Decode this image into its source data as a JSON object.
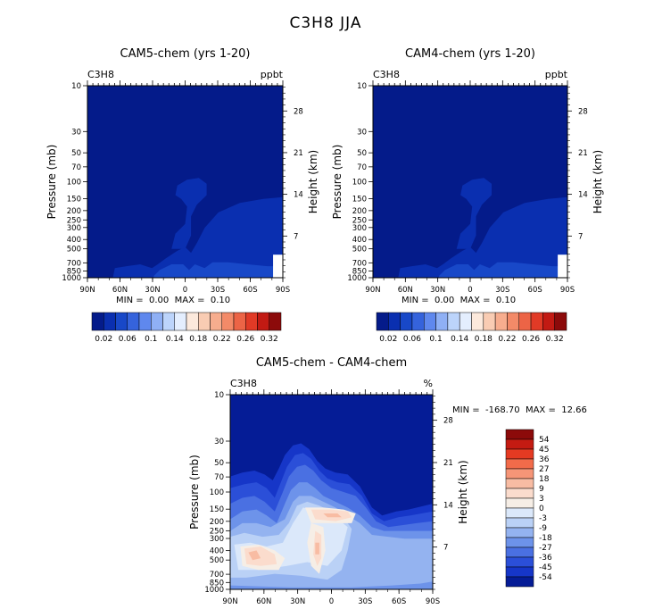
{
  "figure": {
    "title": "C3H8 JJA"
  },
  "chart_data": [
    {
      "id": "cam5",
      "type": "heatmap",
      "title": "CAM5-chem (yrs 1-20)",
      "left_string": "C3H8",
      "right_string": "ppbt",
      "xlabel": "",
      "ylabel": "Pressure (mb)",
      "y2label": "Height (km)",
      "x_ticks": [
        "90N",
        "60N",
        "30N",
        "0",
        "30S",
        "60S",
        "90S"
      ],
      "x_range": [
        90,
        -90
      ],
      "y_ticks": [
        10,
        30,
        50,
        70,
        100,
        150,
        200,
        250,
        300,
        400,
        500,
        700,
        850,
        1000
      ],
      "y_range_mb": [
        10,
        1000
      ],
      "y_scale": "log",
      "y2_ticks": [
        28,
        21,
        14,
        7
      ],
      "min_label": "MIN =",
      "min_value": "0.00",
      "max_label": "MAX =",
      "max_value": "0.10",
      "colorbar": {
        "orientation": "horizontal",
        "labels": [
          "0.02",
          "0.06",
          "0.1",
          "0.14",
          "0.18",
          "0.22",
          "0.26",
          "0.32"
        ],
        "colors": [
          "#041b8a",
          "#0a2fb0",
          "#1848c8",
          "#3563dc",
          "#5f88ee",
          "#8fb0f5",
          "#bcd4fb",
          "#e4eefe",
          "#fce9dc",
          "#f9ccb3",
          "#f7ad8e",
          "#f38a68",
          "#ec6446",
          "#e13a26",
          "#c21a13",
          "#8c0a0a"
        ]
      }
    },
    {
      "id": "cam4",
      "type": "heatmap",
      "title": "CAM4-chem (yrs 1-20)",
      "left_string": "C3H8",
      "right_string": "ppbt",
      "xlabel": "",
      "ylabel": "Pressure (mb)",
      "y2label": "Height (km)",
      "x_ticks": [
        "90N",
        "60N",
        "30N",
        "0",
        "30S",
        "60S",
        "90S"
      ],
      "x_range": [
        90,
        -90
      ],
      "y_ticks": [
        10,
        30,
        50,
        70,
        100,
        150,
        200,
        250,
        300,
        400,
        500,
        700,
        850,
        1000
      ],
      "y_range_mb": [
        10,
        1000
      ],
      "y_scale": "log",
      "y2_ticks": [
        28,
        21,
        14,
        7
      ],
      "min_label": "MIN =",
      "min_value": "0.00",
      "max_label": "MAX =",
      "max_value": "0.10",
      "colorbar": {
        "orientation": "horizontal",
        "labels": [
          "0.02",
          "0.06",
          "0.1",
          "0.14",
          "0.18",
          "0.22",
          "0.26",
          "0.32"
        ],
        "colors": [
          "#041b8a",
          "#0a2fb0",
          "#1848c8",
          "#3563dc",
          "#5f88ee",
          "#8fb0f5",
          "#bcd4fb",
          "#e4eefe",
          "#fce9dc",
          "#f9ccb3",
          "#f7ad8e",
          "#f38a68",
          "#ec6446",
          "#e13a26",
          "#c21a13",
          "#8c0a0a"
        ]
      }
    },
    {
      "id": "diff",
      "type": "heatmap",
      "title": "CAM5-chem - CAM4-chem",
      "left_string": "C3H8",
      "right_string": "%",
      "xlabel": "",
      "ylabel": "Pressure (mb)",
      "y2label": "Height (km)",
      "x_ticks": [
        "90N",
        "60N",
        "30N",
        "0",
        "30S",
        "60S",
        "90S"
      ],
      "x_range": [
        90,
        -90
      ],
      "y_ticks": [
        10,
        30,
        50,
        70,
        100,
        150,
        200,
        250,
        300,
        400,
        500,
        700,
        850,
        1000
      ],
      "y_range_mb": [
        10,
        1000
      ],
      "y_scale": "log",
      "y2_ticks": [
        28,
        21,
        14,
        7
      ],
      "min_label": "MIN =",
      "min_value": "-168.70",
      "max_label": "MAX =",
      "max_value": "12.66",
      "colorbar": {
        "orientation": "vertical",
        "labels": [
          "54",
          "45",
          "36",
          "27",
          "18",
          "9",
          "3",
          "0",
          "-3",
          "-9",
          "-18",
          "-27",
          "-36",
          "-45",
          "-54"
        ],
        "colors": [
          "#8c0a0a",
          "#c41b12",
          "#e53a22",
          "#f26b4a",
          "#f69577",
          "#f8bca3",
          "#fbdccd",
          "#f6eee6",
          "#dbe8fa",
          "#bad1f6",
          "#94b3f0",
          "#6d93ea",
          "#4a70e2",
          "#2b4fd8",
          "#1636c8",
          "#051c96"
        ]
      }
    }
  ]
}
